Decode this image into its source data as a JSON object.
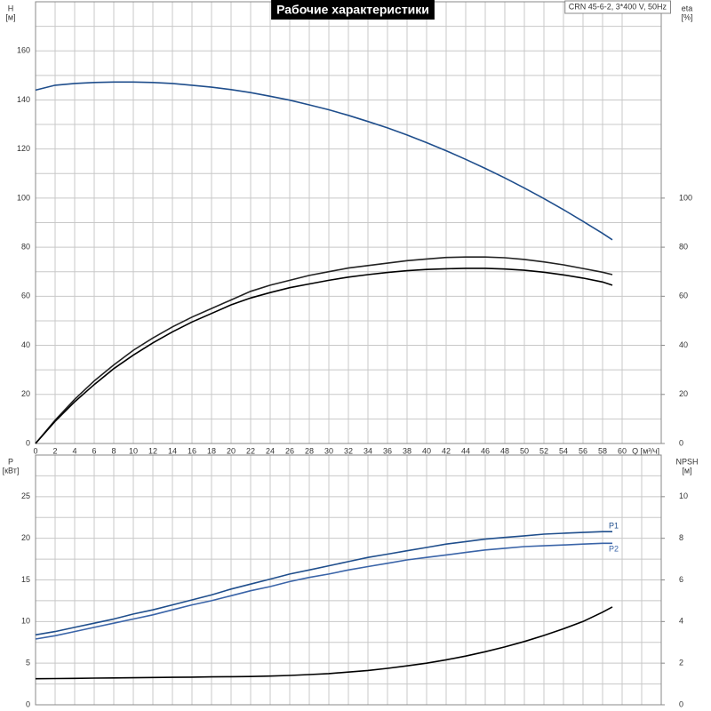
{
  "chart_data": [
    {
      "type": "line",
      "title": "Рабочие характеристики",
      "annotation": "CRN 45-6-2, 3*400 V, 50Hz",
      "xlabel": "Q [м³/ч]",
      "ylabel": "H",
      "yunit": "[м]",
      "y2label": "eta",
      "y2unit": "[%]",
      "x": [
        0,
        2,
        4,
        6,
        8,
        10,
        12,
        14,
        16,
        18,
        20,
        22,
        24,
        26,
        28,
        30,
        32,
        34,
        36,
        38,
        40,
        42,
        44,
        46,
        48,
        50,
        52,
        54,
        56,
        58,
        59
      ],
      "xlim": [
        0,
        64
      ],
      "xticks": [
        0,
        2,
        4,
        6,
        8,
        10,
        12,
        14,
        16,
        18,
        20,
        22,
        24,
        26,
        28,
        30,
        32,
        34,
        36,
        38,
        40,
        42,
        44,
        46,
        48,
        50,
        52,
        54,
        56,
        58,
        60
      ],
      "ylim": [
        0,
        180
      ],
      "yticks": [
        0,
        20,
        40,
        60,
        80,
        100,
        120,
        140,
        160
      ],
      "yminor": [
        10,
        30,
        50,
        70,
        90,
        110,
        130,
        150,
        170
      ],
      "y2lim": [
        0,
        180
      ],
      "y2ticks": [
        0,
        20,
        40,
        60,
        80,
        100
      ],
      "grid": true,
      "series": [
        {
          "color": "#1f4e8c",
          "values": [
            144,
            146.0,
            146.7,
            147.1,
            147.3,
            147.3,
            147.1,
            146.7,
            146.0,
            145.2,
            144.2,
            143.0,
            141.5,
            139.9,
            138.0,
            136.0,
            133.7,
            131.2,
            128.6,
            125.7,
            122.6,
            119.3,
            115.8,
            112.1,
            108.2,
            104.1,
            99.8,
            95.3,
            90.5,
            85.6,
            83.0
          ]
        },
        {
          "color": "#222222",
          "axis": "y2",
          "values": [
            0,
            9.5,
            18,
            25.5,
            32,
            38,
            43,
            47.5,
            51.5,
            55,
            58.5,
            62,
            64.5,
            66.5,
            68.5,
            70,
            71.5,
            72.5,
            73.5,
            74.5,
            75.2,
            75.8,
            76,
            76,
            75.7,
            75,
            74,
            72.8,
            71.3,
            69.8,
            68.8
          ]
        },
        {
          "color": "#000000",
          "axis": "y2",
          "values": [
            0,
            9,
            17,
            24,
            30.5,
            36,
            41,
            45.5,
            49.5,
            53,
            56.5,
            59.3,
            61.5,
            63.5,
            65,
            66.5,
            67.8,
            68.8,
            69.7,
            70.4,
            70.9,
            71.2,
            71.4,
            71.4,
            71.1,
            70.6,
            69.8,
            68.7,
            67.4,
            65.8,
            64.5
          ]
        }
      ]
    },
    {
      "type": "line",
      "ylabel": "P",
      "yunit": "[кВт]",
      "y2label": "NPSH",
      "y2unit": "[м]",
      "x": [
        0,
        2,
        4,
        6,
        8,
        10,
        12,
        14,
        16,
        18,
        20,
        22,
        24,
        26,
        28,
        30,
        32,
        34,
        36,
        38,
        40,
        42,
        44,
        46,
        48,
        50,
        52,
        54,
        56,
        58,
        59
      ],
      "xlim": [
        0,
        64
      ],
      "xgrid": [
        0,
        2,
        4,
        6,
        8,
        10,
        12,
        14,
        16,
        18,
        20,
        22,
        24,
        26,
        28,
        30,
        32,
        34,
        36,
        38,
        40,
        42,
        44,
        46,
        48,
        50,
        52,
        54,
        56,
        58,
        60,
        62
      ],
      "ylim": [
        0,
        30
      ],
      "yticks": [
        0,
        5,
        10,
        15,
        20,
        25
      ],
      "yminor": [
        2.5,
        7.5,
        12.5,
        17.5,
        22.5,
        27.5
      ],
      "y2lim": [
        0,
        12
      ],
      "y2ticks": [
        0,
        2,
        4,
        6,
        8,
        10
      ],
      "grid": true,
      "series": [
        {
          "name": "P1",
          "color": "#1f4e8c",
          "values": [
            8.4,
            8.8,
            9.3,
            9.8,
            10.3,
            10.9,
            11.4,
            12.0,
            12.6,
            13.2,
            13.9,
            14.5,
            15.1,
            15.7,
            16.2,
            16.7,
            17.2,
            17.7,
            18.1,
            18.5,
            18.9,
            19.3,
            19.6,
            19.9,
            20.1,
            20.3,
            20.5,
            20.6,
            20.7,
            20.8,
            20.8
          ]
        },
        {
          "name": "P2",
          "color": "#3a64a8",
          "values": [
            7.9,
            8.3,
            8.8,
            9.3,
            9.8,
            10.3,
            10.8,
            11.4,
            12.0,
            12.5,
            13.1,
            13.7,
            14.2,
            14.8,
            15.3,
            15.7,
            16.2,
            16.6,
            17.0,
            17.4,
            17.7,
            18.0,
            18.3,
            18.6,
            18.8,
            19.0,
            19.1,
            19.2,
            19.3,
            19.4,
            19.4
          ]
        },
        {
          "color": "#000000",
          "axis": "y2",
          "values": [
            1.25,
            1.26,
            1.27,
            1.28,
            1.29,
            1.3,
            1.31,
            1.32,
            1.33,
            1.34,
            1.35,
            1.36,
            1.38,
            1.41,
            1.45,
            1.5,
            1.57,
            1.65,
            1.75,
            1.87,
            2.0,
            2.16,
            2.34,
            2.55,
            2.78,
            3.04,
            3.33,
            3.65,
            4.0,
            4.45,
            4.7
          ]
        }
      ]
    }
  ]
}
